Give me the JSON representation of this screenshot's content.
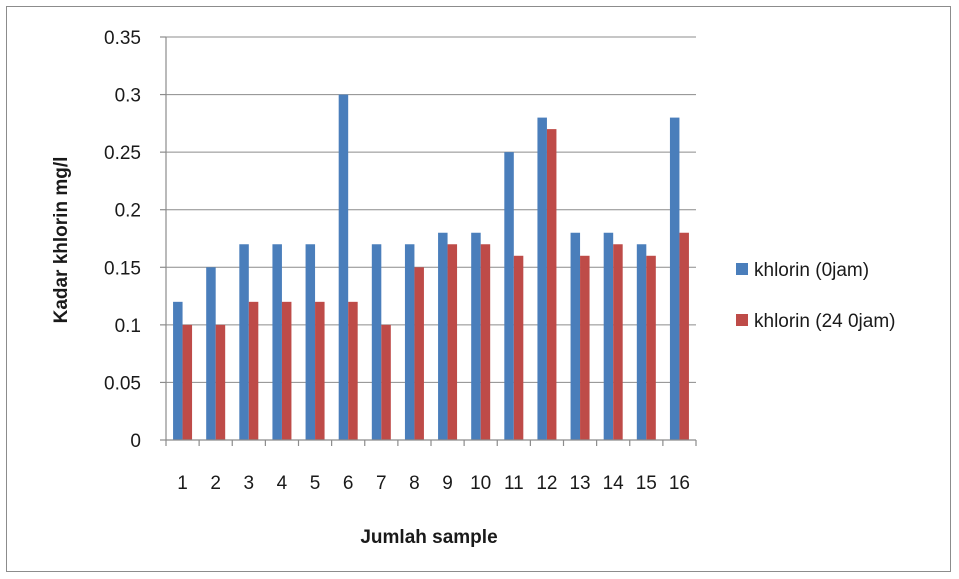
{
  "chart_data": {
    "type": "bar",
    "title": "",
    "xlabel": "Jumlah sample",
    "ylabel": "Kadar khlorin mg/l",
    "ylim": [
      0,
      0.35
    ],
    "yticks": [
      "0",
      "0.05",
      "0.1",
      "0.15",
      "0.2",
      "0.25",
      "0.3",
      "0.35"
    ],
    "grid": true,
    "legend_position": "right",
    "categories": [
      "1",
      "2",
      "3",
      "4",
      "5",
      "6",
      "7",
      "8",
      "9",
      "10",
      "11",
      "12",
      "13",
      "14",
      "15",
      "16"
    ],
    "series": [
      {
        "name": "khlorin (0jam)",
        "color": "#4a7ebb",
        "values": [
          0.12,
          0.15,
          0.17,
          0.17,
          0.17,
          0.3,
          0.17,
          0.17,
          0.18,
          0.18,
          0.25,
          0.28,
          0.18,
          0.18,
          0.17,
          0.28
        ]
      },
      {
        "name": "khlorin (24 0jam)",
        "color": "#be4b48",
        "values": [
          0.1,
          0.1,
          0.12,
          0.12,
          0.12,
          0.12,
          0.1,
          0.15,
          0.17,
          0.17,
          0.16,
          0.27,
          0.16,
          0.17,
          0.16,
          0.18
        ]
      }
    ]
  }
}
